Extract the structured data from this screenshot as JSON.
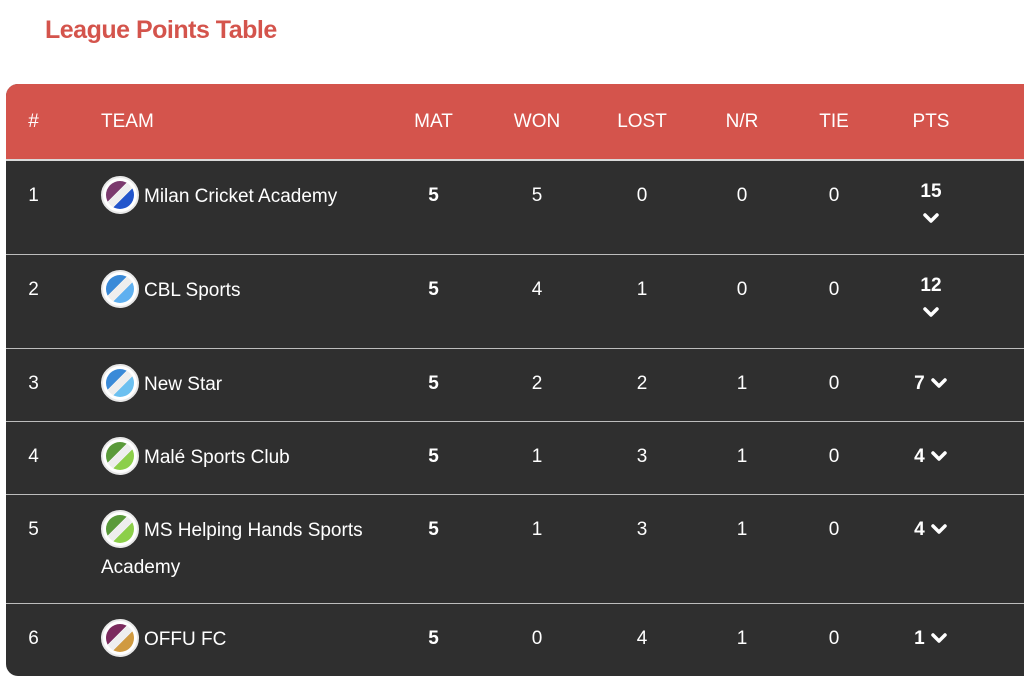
{
  "title": "League Points Table",
  "columns": [
    "#",
    "TEAM",
    "MAT",
    "WON",
    "LOST",
    "N/R",
    "TIE",
    "PTS"
  ],
  "colors": {
    "accent": "#d4544c",
    "row_bg": "#2f2f2f"
  },
  "rows": [
    {
      "rank": "1",
      "team": "Milan Cricket Academy",
      "mat": "5",
      "won": "5",
      "lost": "0",
      "nr": "0",
      "tie": "0",
      "pts": "15",
      "logo_colors": [
        "#7b3a6e",
        "#2255cc"
      ]
    },
    {
      "rank": "2",
      "team": "CBL Sports",
      "mat": "5",
      "won": "4",
      "lost": "1",
      "nr": "0",
      "tie": "0",
      "pts": "12",
      "logo_colors": [
        "#3a8ad8",
        "#5fb0f0"
      ]
    },
    {
      "rank": "3",
      "team": "New Star",
      "mat": "5",
      "won": "2",
      "lost": "2",
      "nr": "1",
      "tie": "0",
      "pts": "7",
      "logo_colors": [
        "#3a8ad8",
        "#6cc0f0"
      ]
    },
    {
      "rank": "4",
      "team": "Malé Sports Club",
      "mat": "5",
      "won": "1",
      "lost": "3",
      "nr": "1",
      "tie": "0",
      "pts": "4",
      "logo_colors": [
        "#5a9a3a",
        "#8ccf4a"
      ]
    },
    {
      "rank": "5",
      "team": "MS Helping Hands Sports Academy",
      "mat": "5",
      "won": "1",
      "lost": "3",
      "nr": "1",
      "tie": "0",
      "pts": "4",
      "logo_colors": [
        "#5a9a3a",
        "#8ccf4a"
      ]
    },
    {
      "rank": "6",
      "team": "OFFU FC",
      "mat": "5",
      "won": "0",
      "lost": "4",
      "nr": "1",
      "tie": "0",
      "pts": "1",
      "logo_colors": [
        "#7b2a5e",
        "#d09a40"
      ]
    }
  ]
}
